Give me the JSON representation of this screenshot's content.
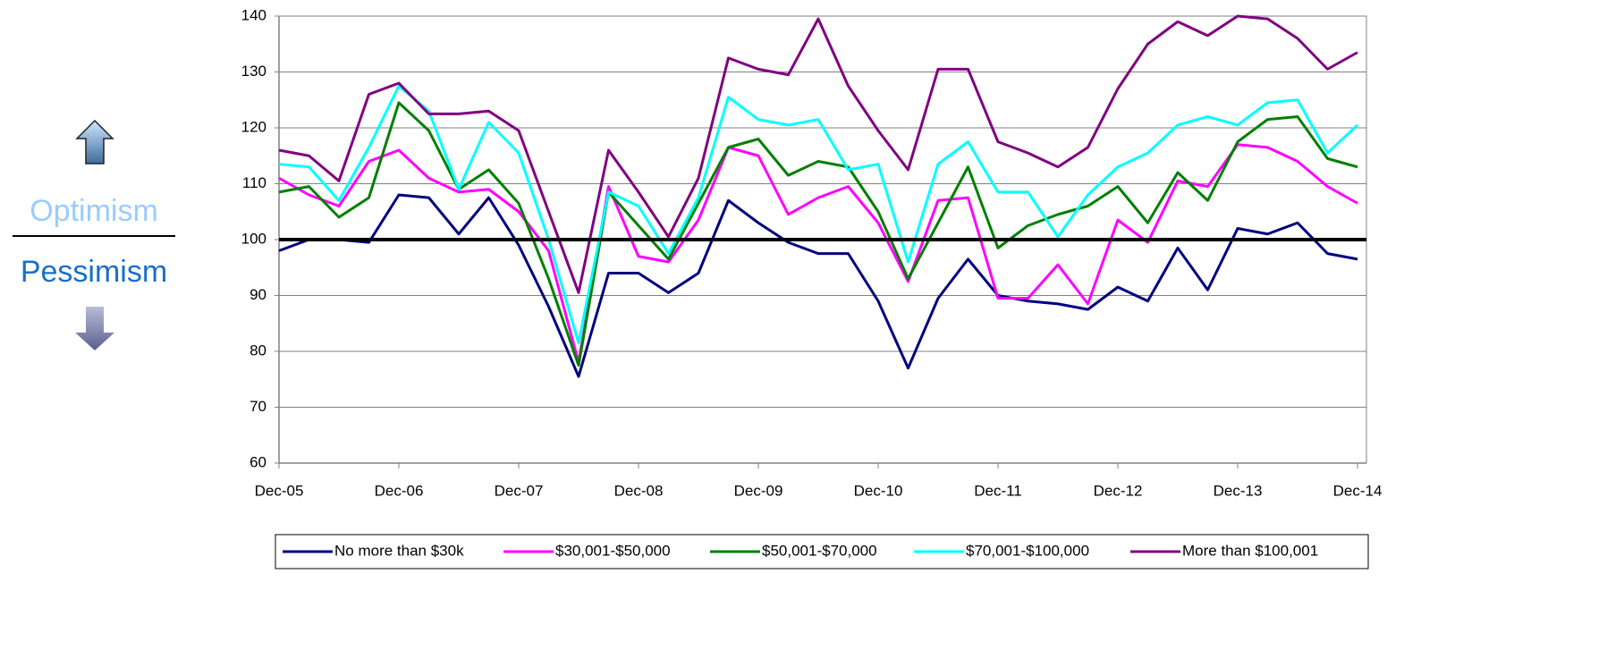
{
  "chart_data": {
    "type": "line",
    "side_labels": {
      "top": "Optimism",
      "bottom": "Pessimism"
    },
    "categories": [
      "Dec-05",
      null,
      null,
      null,
      "Dec-06",
      null,
      null,
      null,
      "Dec-07",
      null,
      null,
      null,
      "Dec-08",
      null,
      null,
      null,
      "Dec-09",
      null,
      null,
      null,
      "Dec-10",
      null,
      null,
      null,
      "Dec-11",
      null,
      null,
      null,
      "Dec-12",
      null,
      null,
      null,
      "Dec-13",
      null,
      null,
      null,
      "Dec-14"
    ],
    "series": [
      {
        "name": "No more than $30k",
        "color": "#000080",
        "values": [
          98,
          100,
          100,
          99.5,
          108,
          107.5,
          101,
          107.5,
          99,
          88,
          75.5,
          94,
          94,
          90.5,
          94,
          107,
          103,
          99.5,
          97.5,
          97.5,
          89,
          77,
          89.5,
          96.5,
          90,
          89,
          88.5,
          87.5,
          91.5,
          89,
          98.5,
          91,
          102,
          101,
          103,
          97.5,
          96.5
        ]
      },
      {
        "name": "$30,001-$50,000",
        "color": "#ff00ff",
        "values": [
          111,
          108,
          106,
          114,
          116,
          111,
          108.5,
          109,
          105,
          98,
          78,
          109.5,
          97,
          96,
          103.5,
          116.5,
          115,
          104.5,
          107.5,
          109.5,
          103,
          92.5,
          107,
          107.5,
          89.5,
          89.5,
          95.5,
          88.5,
          103.5,
          99.5,
          110.5,
          109.5,
          117,
          116.5,
          114,
          109.5,
          106.5
        ]
      },
      {
        "name": "$50,001-$70,000",
        "color": "#008000",
        "values": [
          108.5,
          109.5,
          104,
          107.5,
          124.5,
          119.5,
          109,
          112.5,
          106.5,
          93,
          77.5,
          108.5,
          102.5,
          96.5,
          106.5,
          116.5,
          118,
          111.5,
          114,
          113,
          105,
          93,
          103,
          113,
          98.5,
          102.5,
          104.5,
          106,
          109.5,
          103,
          112,
          107,
          117.5,
          121.5,
          122,
          114.5,
          113
        ]
      },
      {
        "name": "$70,001-$100,000",
        "color": "#00ffff",
        "values": [
          113.5,
          113,
          107,
          116.5,
          127.5,
          123,
          109,
          121,
          115.5,
          100,
          81.5,
          108.5,
          106,
          97.5,
          107.5,
          125.5,
          121.5,
          120.5,
          121.5,
          112.5,
          113.5,
          96,
          113.5,
          117.5,
          108.5,
          108.5,
          100.5,
          108,
          113,
          115.5,
          120.5,
          122,
          120.5,
          124.5,
          125,
          115.5,
          120.5
        ]
      },
      {
        "name": "More than $100,001",
        "color": "#800080",
        "values": [
          116,
          115,
          110.5,
          126,
          128,
          122.5,
          122.5,
          123,
          119.5,
          105,
          90.5,
          116,
          108.5,
          100.5,
          111,
          132.5,
          130.5,
          129.5,
          139.5,
          127.5,
          119.5,
          112.5,
          130.5,
          130.5,
          117.5,
          115.5,
          113,
          116.5,
          127,
          135,
          139,
          136.5,
          140,
          139.5,
          136,
          130.5,
          133.5
        ]
      }
    ],
    "reference_line": 100,
    "ylim": [
      60,
      140
    ],
    "yticks": [
      60,
      70,
      80,
      90,
      100,
      110,
      120,
      130,
      140
    ],
    "grid": true
  }
}
